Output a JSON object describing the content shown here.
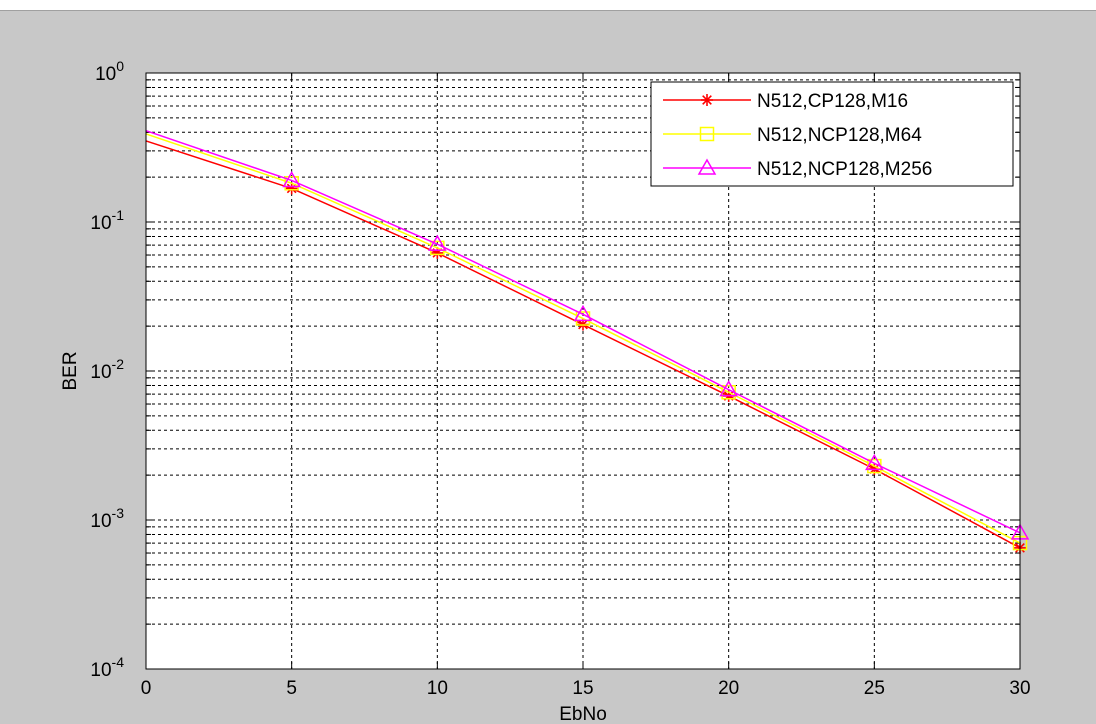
{
  "chart_data": {
    "type": "line",
    "title": "",
    "xlabel": "EbNo",
    "ylabel": "BER",
    "xlim": [
      0,
      30
    ],
    "ylim": [
      0.0001,
      1
    ],
    "yscale": "log",
    "grid": true,
    "legend_position": "top-right",
    "x_ticks": [
      0,
      5,
      10,
      15,
      20,
      25,
      30
    ],
    "x_tick_labels": [
      "0",
      "5",
      "10",
      "15",
      "20",
      "25",
      "30"
    ],
    "y_tick_values": [
      1,
      0.1,
      0.01,
      0.001,
      0.0001
    ],
    "y_tick_base": "10",
    "y_tick_exponents": [
      "0",
      "-1",
      "-2",
      "-3",
      "-4"
    ],
    "x": [
      0,
      5,
      10,
      15,
      20,
      25,
      30
    ],
    "series": [
      {
        "name": "N512,CP128,M16",
        "color": "#ff0000",
        "marker": "asterisk",
        "values": [
          0.35,
          0.168,
          0.062,
          0.0205,
          0.0068,
          0.0022,
          0.00065
        ]
      },
      {
        "name": "N512,NCP128,M64",
        "color": "#ffff00",
        "marker": "square",
        "values": [
          0.39,
          0.182,
          0.067,
          0.0225,
          0.0072,
          0.0023,
          0.0007
        ]
      },
      {
        "name": "N512,NCP128,M256",
        "color": "#ff00ff",
        "marker": "triangle",
        "values": [
          0.41,
          0.19,
          0.071,
          0.024,
          0.0075,
          0.0024,
          0.00082
        ]
      }
    ]
  }
}
